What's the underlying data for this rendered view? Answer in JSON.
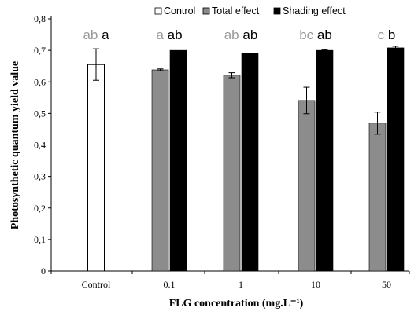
{
  "colors": {
    "control": "#ffffff",
    "total_effect": "#8c8c8c",
    "shading_effect": "#000000",
    "significance_grey": "#9a9a9a"
  },
  "chart_data": {
    "type": "bar",
    "xlabel": "FLG concentration (mg.L⁻¹)",
    "ylabel": "Photosynthetic quantum yield value",
    "ylim": [
      0,
      0.8
    ],
    "yticks": [
      "0",
      "0,1",
      "0,2",
      "0,3",
      "0,4",
      "0,5",
      "0,6",
      "0,7",
      "0,8"
    ],
    "categories": [
      "Control",
      "0.1",
      "1",
      "10",
      "50"
    ],
    "legend_position": "top",
    "series": [
      {
        "name": "Control",
        "color_key": "control",
        "values": [
          0.655,
          null,
          null,
          null,
          null
        ],
        "errors": [
          0.05,
          null,
          null,
          null,
          null
        ]
      },
      {
        "name": "Total effect",
        "color_key": "total_effect",
        "values": [
          null,
          0.638,
          0.621,
          0.541,
          0.469
        ],
        "errors": [
          null,
          0.003,
          0.008,
          0.042,
          0.035
        ]
      },
      {
        "name": "Shading effect",
        "color_key": "shading_effect",
        "values": [
          null,
          0.7,
          0.692,
          0.7,
          0.708
        ],
        "errors": [
          null,
          0.0,
          0.0,
          0.002,
          0.005
        ]
      }
    ],
    "significance": [
      {
        "grey": "ab",
        "black": "a"
      },
      {
        "grey": "a",
        "black": "ab"
      },
      {
        "grey": "ab",
        "black": "ab"
      },
      {
        "grey": "bc",
        "black": "ab"
      },
      {
        "grey": "c",
        "black": "b"
      }
    ]
  }
}
